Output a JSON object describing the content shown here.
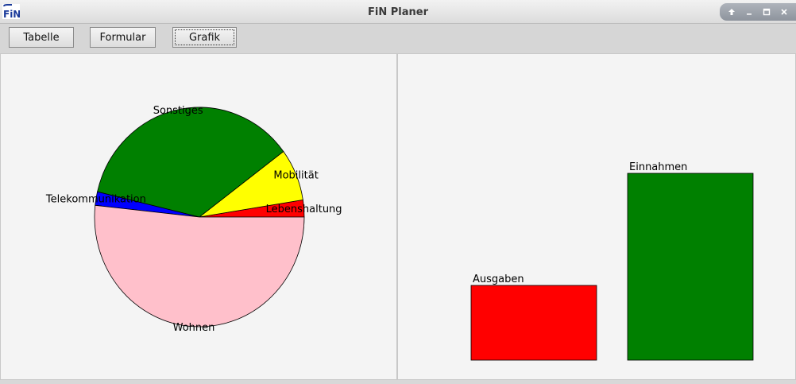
{
  "window": {
    "title": "FiN Planer",
    "app_icon_text": "FiN",
    "controls": [
      "arrow-up-icon",
      "minimize-icon",
      "maximize-icon",
      "close-icon"
    ]
  },
  "toolbar": {
    "tabelle_label": "Tabelle",
    "formular_label": "Formular",
    "grafik_label": "Grafik",
    "active": "Grafik"
  },
  "colors": {
    "wohnen": "#ffc0cb",
    "telekommunikation": "#0000ff",
    "sonstiges": "#008000",
    "mobilitaet": "#ffff00",
    "lebenshaltung": "#ff0000",
    "ausgaben": "#ff0000",
    "einnahmen": "#008000"
  },
  "chart_data": [
    {
      "type": "pie",
      "start_angle_deg": 0,
      "direction": "counterclockwise",
      "slices": [
        {
          "label": "Lebenshaltung",
          "value": 2.5,
          "color": "#ff0000"
        },
        {
          "label": "Mobilität",
          "value": 7.7,
          "color": "#ffff00"
        },
        {
          "label": "Sonstiges",
          "value": 36.1,
          "color": "#008000"
        },
        {
          "label": "Telekommunikation",
          "value": 2.0,
          "color": "#0000ff"
        },
        {
          "label": "Wohnen",
          "value": 51.7,
          "color": "#ffc0cb"
        }
      ]
    },
    {
      "type": "bar",
      "categories": [
        "Ausgaben",
        "Einnahmen"
      ],
      "values": [
        40,
        100
      ],
      "colors": [
        "#ff0000",
        "#008000"
      ]
    }
  ]
}
